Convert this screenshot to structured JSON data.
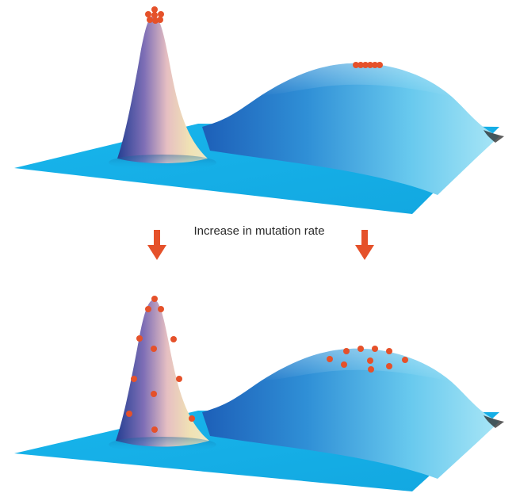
{
  "caption": "Increase in mutation rate",
  "colors": {
    "surface_cyan": "#19b6ec",
    "surface_deep": "#1e88c8",
    "narrow_peak_pink": "#e9c2c0",
    "narrow_peak_cream": "#efe6b8",
    "narrow_peak_navy": "#2b4f9e",
    "individual_dot": "#e5512a",
    "arrow": "#e5512a"
  },
  "panels": [
    {
      "state": "before",
      "narrow_peak_population": "tight cluster at summit",
      "broad_peak_population": "tight row at summit"
    },
    {
      "state": "after",
      "narrow_peak_population": "spread down slopes",
      "broad_peak_population": "mostly retained near summit"
    }
  ],
  "icons": [
    "down-arrow-icon",
    "down-arrow-icon"
  ]
}
